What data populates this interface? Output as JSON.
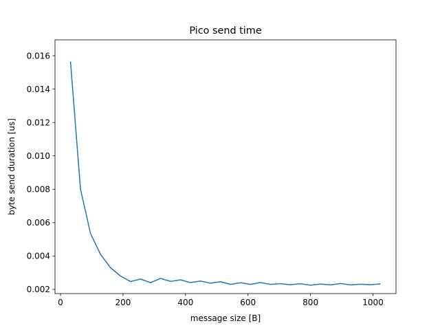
{
  "chart_data": {
    "type": "line",
    "title": "Pico send time",
    "xlabel": "message size [B]",
    "ylabel": "byte send duration [us]",
    "xlim": [
      -17.6,
      1073.6
    ],
    "ylim": [
      0.00175,
      0.01695
    ],
    "xticks": [
      0,
      200,
      400,
      600,
      800,
      1000
    ],
    "xtick_labels": [
      "0",
      "200",
      "400",
      "600",
      "800",
      "1000"
    ],
    "yticks": [
      0.002,
      0.004,
      0.006,
      0.008,
      0.01,
      0.012,
      0.014,
      0.016
    ],
    "ytick_labels": [
      "0.002",
      "0.004",
      "0.006",
      "0.008",
      "0.010",
      "0.012",
      "0.014",
      "0.016"
    ],
    "grid": false,
    "series": [
      {
        "color": "#1f77b4",
        "x": [
          32,
          64,
          96,
          128,
          160,
          192,
          224,
          256,
          288,
          320,
          352,
          384,
          416,
          448,
          480,
          512,
          544,
          576,
          608,
          640,
          672,
          704,
          736,
          768,
          800,
          832,
          864,
          896,
          928,
          960,
          992,
          1024
        ],
        "y": [
          0.01565,
          0.008,
          0.00535,
          0.0041,
          0.0033,
          0.0028,
          0.00247,
          0.00262,
          0.0024,
          0.00266,
          0.00248,
          0.00257,
          0.00241,
          0.0025,
          0.00237,
          0.00246,
          0.0023,
          0.0024,
          0.0023,
          0.00241,
          0.0023,
          0.00234,
          0.00228,
          0.00234,
          0.00225,
          0.00232,
          0.00227,
          0.00235,
          0.00227,
          0.00231,
          0.00228,
          0.00233
        ]
      }
    ]
  }
}
